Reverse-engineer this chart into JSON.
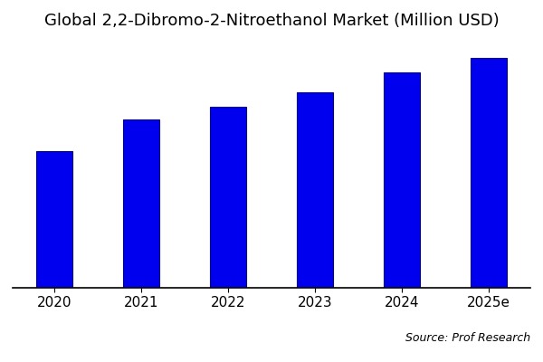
{
  "title": "Global 2,2-Dibromo-2-Nitroethanol Market (Million USD)",
  "categories": [
    "2020",
    "2021",
    "2022",
    "2023",
    "2024",
    "2025e"
  ],
  "values": [
    55,
    68,
    73,
    79,
    87,
    93
  ],
  "bar_color": "#0000EE",
  "bar_edge_color": "#000080",
  "background_color": "#FFFFFF",
  "source_text": "Source: Prof Research",
  "title_fontsize": 13,
  "tick_fontsize": 11,
  "source_fontsize": 9,
  "ylim": [
    0,
    100
  ],
  "bar_width": 0.42
}
